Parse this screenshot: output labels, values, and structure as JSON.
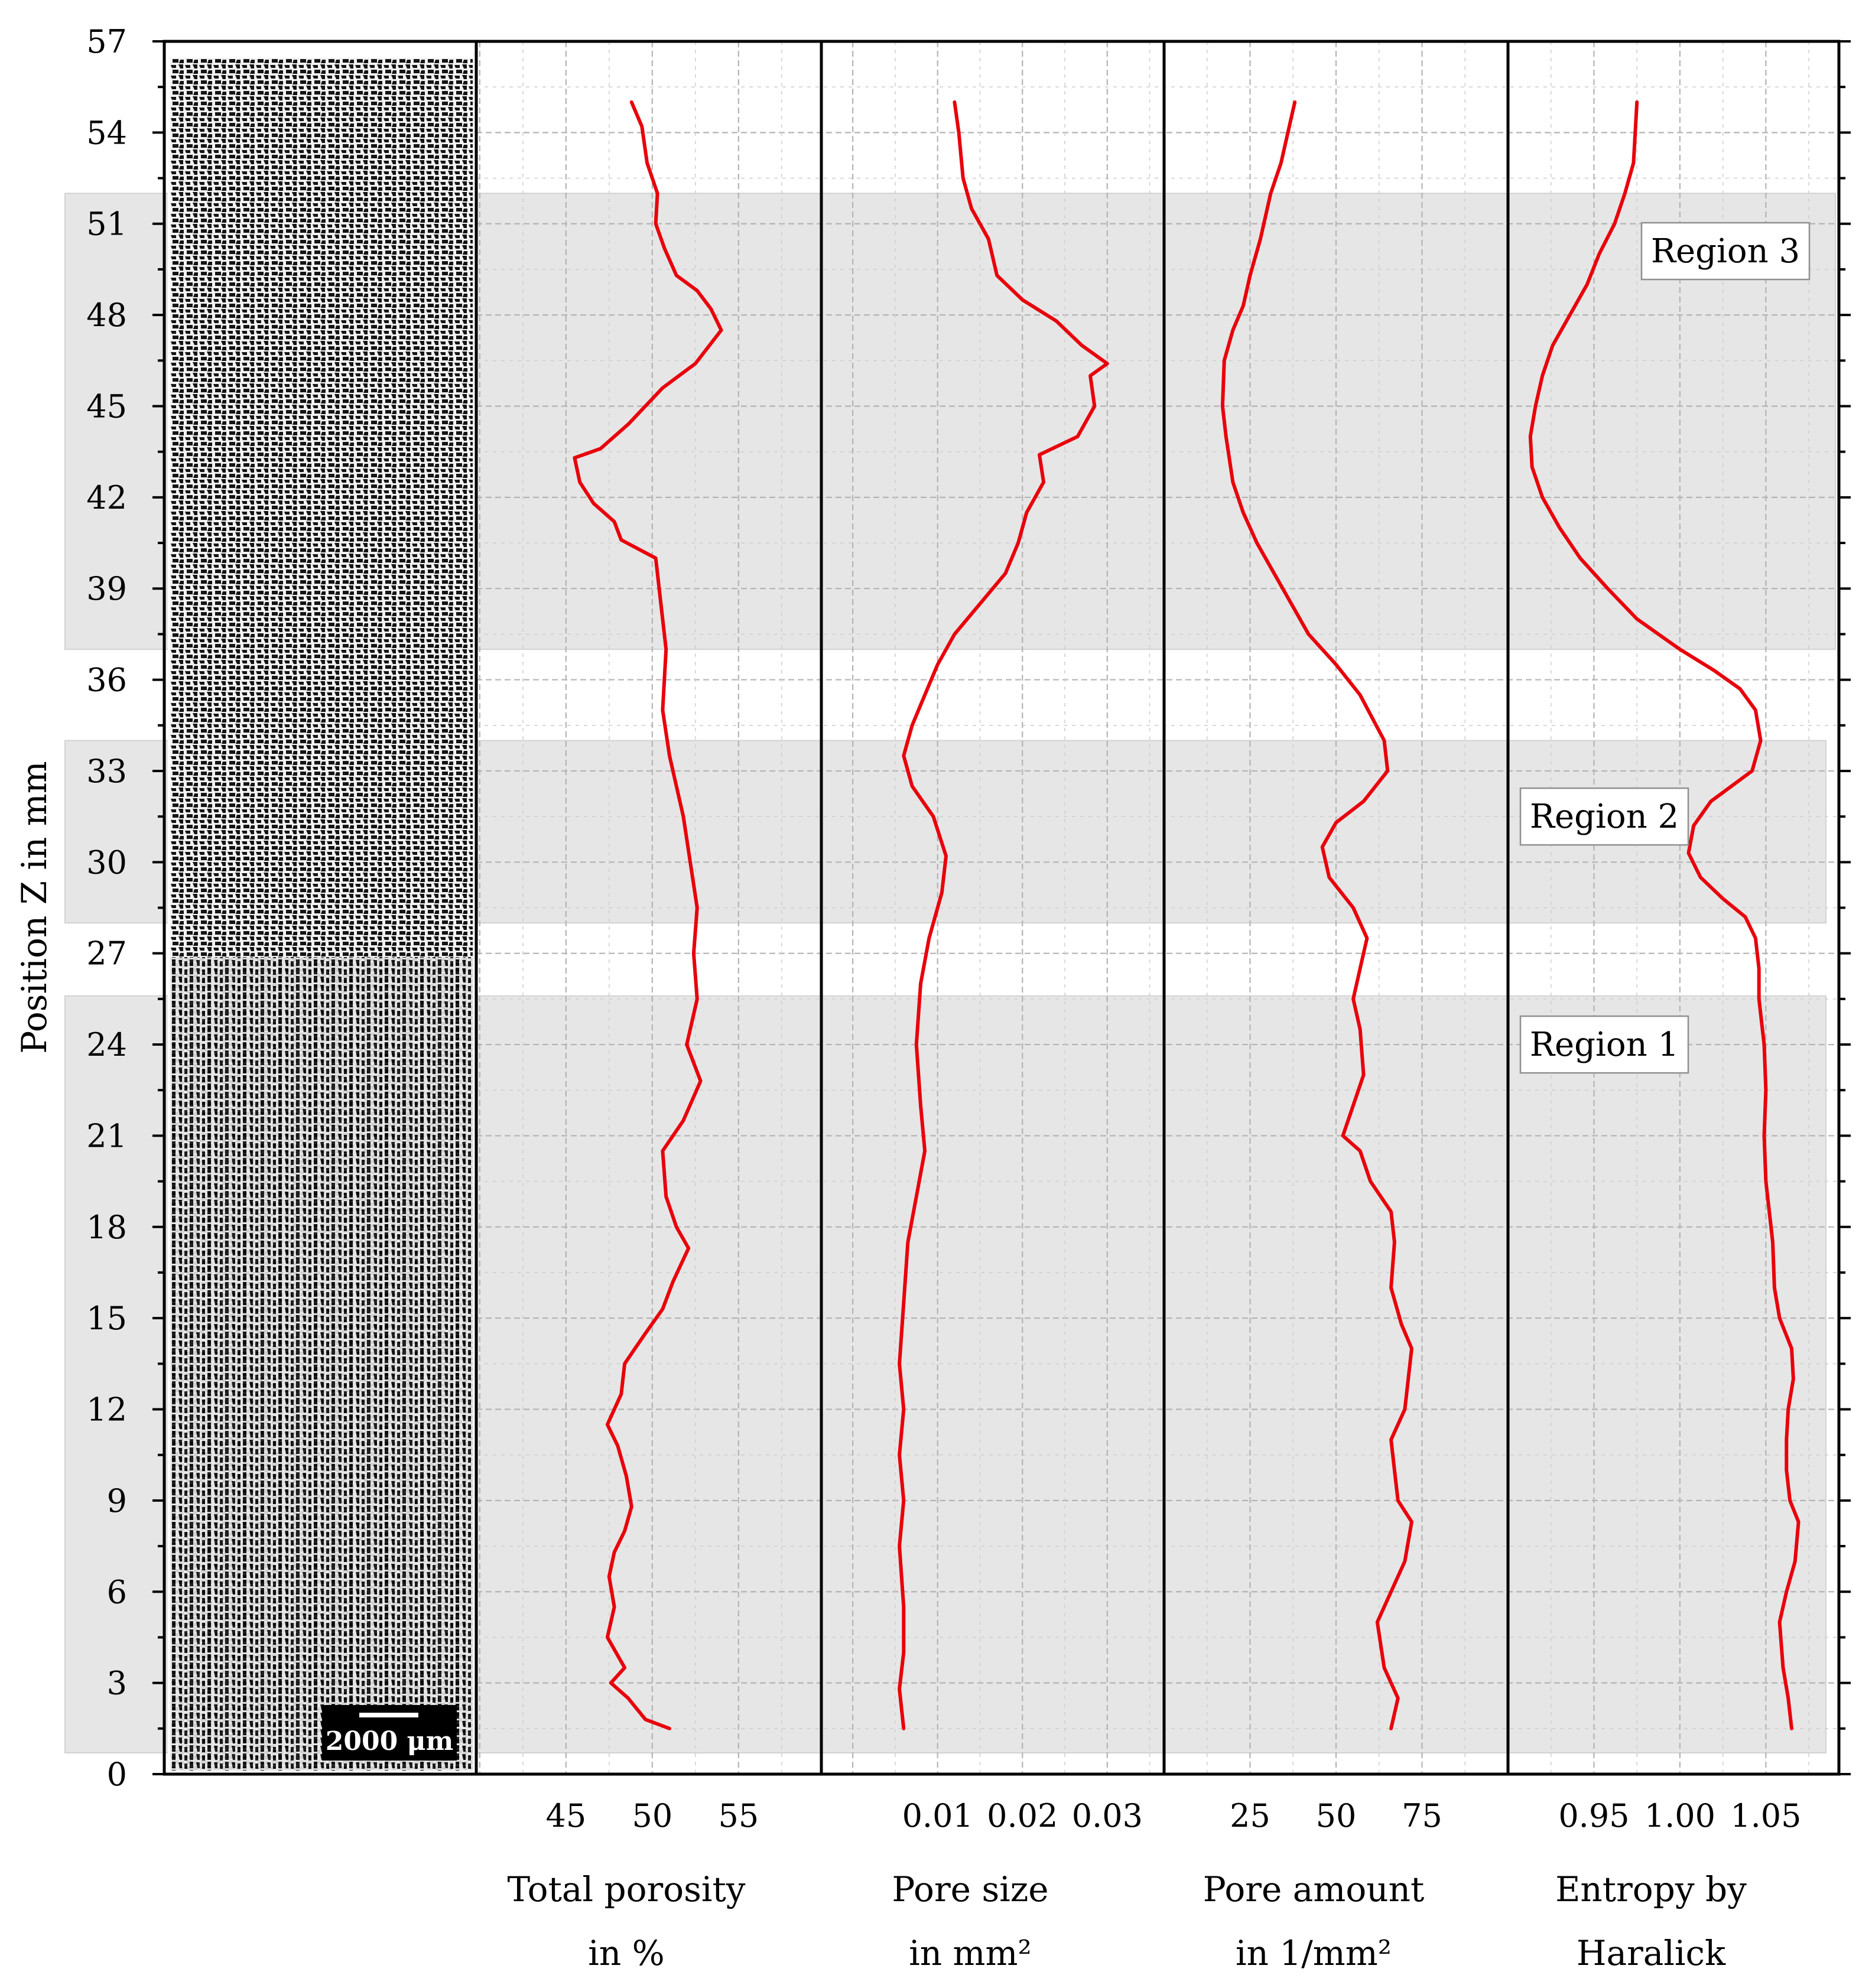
{
  "chart_data": {
    "type": "line",
    "shared_y_axis": {
      "label": "Position Z in mm",
      "range": [
        0,
        57
      ],
      "ticks": [
        0,
        3,
        6,
        9,
        12,
        15,
        18,
        21,
        24,
        27,
        30,
        33,
        36,
        39,
        42,
        45,
        48,
        51,
        54,
        57
      ],
      "tick_labels": [
        "0",
        "3",
        "6",
        "9",
        "12",
        "15",
        "18",
        "21",
        "24",
        "27",
        "30",
        "33",
        "36",
        "39",
        "42",
        "45",
        "48",
        "51",
        "54",
        "57"
      ],
      "minor_step": 1.5
    },
    "grid": true,
    "regions": [
      {
        "label": "Region 1",
        "z_range": [
          0.7,
          25.6
        ]
      },
      {
        "label": "Region 2",
        "z_range": [
          28.0,
          34.0
        ]
      },
      {
        "label": "Region 3",
        "z_range": [
          37.0,
          52.0
        ]
      }
    ],
    "image_panel": {
      "scale_bar_label": "2000 μm",
      "image_type": "microstructure"
    },
    "panels": [
      {
        "name": "porosity",
        "xlabel": [
          "Total porosity",
          "in %"
        ],
        "xlim": [
          39.8,
          59.8
        ],
        "xticks": [
          45,
          50,
          55
        ],
        "xtick_labels": [
          "45",
          "50",
          "55"
        ],
        "line_color": "#e8000b",
        "points": [
          [
            51.0,
            1.5
          ],
          [
            49.6,
            1.8
          ],
          [
            48.6,
            2.5
          ],
          [
            47.6,
            3.0
          ],
          [
            48.4,
            3.5
          ],
          [
            47.4,
            4.5
          ],
          [
            47.8,
            5.5
          ],
          [
            47.5,
            6.5
          ],
          [
            47.8,
            7.3
          ],
          [
            48.4,
            8.0
          ],
          [
            48.8,
            8.8
          ],
          [
            48.5,
            9.8
          ],
          [
            48.0,
            10.8
          ],
          [
            47.4,
            11.5
          ],
          [
            48.2,
            12.5
          ],
          [
            48.4,
            13.5
          ],
          [
            49.0,
            14.0
          ],
          [
            49.6,
            14.5
          ],
          [
            50.6,
            15.3
          ],
          [
            51.2,
            16.2
          ],
          [
            52.1,
            17.3
          ],
          [
            51.4,
            18.0
          ],
          [
            50.8,
            19.0
          ],
          [
            50.6,
            20.5
          ],
          [
            51.8,
            21.5
          ],
          [
            52.8,
            22.8
          ],
          [
            52.0,
            24.0
          ],
          [
            52.6,
            25.5
          ],
          [
            52.4,
            27.0
          ],
          [
            52.6,
            28.5
          ],
          [
            52.2,
            30.0
          ],
          [
            51.8,
            31.5
          ],
          [
            51.0,
            33.5
          ],
          [
            50.6,
            35.0
          ],
          [
            50.8,
            37.0
          ],
          [
            50.4,
            39.0
          ],
          [
            50.2,
            40.0
          ],
          [
            48.2,
            40.6
          ],
          [
            47.8,
            41.2
          ],
          [
            46.6,
            41.8
          ],
          [
            45.8,
            42.5
          ],
          [
            45.5,
            43.3
          ],
          [
            47.0,
            43.6
          ],
          [
            48.6,
            44.4
          ],
          [
            50.6,
            45.6
          ],
          [
            52.5,
            46.4
          ],
          [
            54.0,
            47.5
          ],
          [
            53.4,
            48.2
          ],
          [
            52.6,
            48.8
          ],
          [
            51.4,
            49.3
          ],
          [
            50.7,
            50.2
          ],
          [
            50.2,
            51.0
          ],
          [
            50.3,
            52.0
          ],
          [
            49.7,
            53.0
          ],
          [
            49.4,
            54.2
          ],
          [
            48.8,
            55.0
          ]
        ]
      },
      {
        "name": "pore_size",
        "xlabel": [
          "Pore size",
          "in mm²"
        ],
        "xlim": [
          -0.0037,
          0.0367
        ],
        "xticks": [
          0.01,
          0.02,
          0.03
        ],
        "xtick_labels": [
          "0.01",
          "0.02",
          "0.03"
        ],
        "line_color": "#e8000b",
        "points": [
          [
            0.006,
            1.5
          ],
          [
            0.0055,
            2.8
          ],
          [
            0.006,
            4.0
          ],
          [
            0.006,
            5.5
          ],
          [
            0.0055,
            7.5
          ],
          [
            0.006,
            9.0
          ],
          [
            0.0055,
            10.5
          ],
          [
            0.006,
            12.0
          ],
          [
            0.0055,
            13.5
          ],
          [
            0.006,
            15.5
          ],
          [
            0.0065,
            17.5
          ],
          [
            0.0075,
            19.0
          ],
          [
            0.0085,
            20.5
          ],
          [
            0.008,
            22.0
          ],
          [
            0.0075,
            24.0
          ],
          [
            0.008,
            26.0
          ],
          [
            0.009,
            27.5
          ],
          [
            0.0105,
            29.0
          ],
          [
            0.011,
            30.2
          ],
          [
            0.0095,
            31.5
          ],
          [
            0.007,
            32.5
          ],
          [
            0.006,
            33.5
          ],
          [
            0.007,
            34.5
          ],
          [
            0.0085,
            35.5
          ],
          [
            0.01,
            36.5
          ],
          [
            0.012,
            37.5
          ],
          [
            0.015,
            38.5
          ],
          [
            0.018,
            39.5
          ],
          [
            0.0195,
            40.5
          ],
          [
            0.0205,
            41.5
          ],
          [
            0.0225,
            42.5
          ],
          [
            0.022,
            43.4
          ],
          [
            0.0265,
            44.0
          ],
          [
            0.0285,
            45.0
          ],
          [
            0.028,
            46.0
          ],
          [
            0.03,
            46.4
          ],
          [
            0.027,
            47.0
          ],
          [
            0.024,
            47.8
          ],
          [
            0.02,
            48.5
          ],
          [
            0.017,
            49.3
          ],
          [
            0.016,
            50.5
          ],
          [
            0.014,
            51.5
          ],
          [
            0.013,
            52.5
          ],
          [
            0.0125,
            54.0
          ],
          [
            0.012,
            55.0
          ]
        ]
      },
      {
        "name": "pore_amount",
        "xlabel": [
          "Pore amount",
          "in 1/mm²"
        ],
        "xlim": [
          0,
          100
        ],
        "xticks": [
          25,
          50,
          75
        ],
        "xtick_labels": [
          "25",
          "50",
          "75"
        ],
        "line_color": "#e8000b",
        "points": [
          [
            66.0,
            1.5
          ],
          [
            68.0,
            2.5
          ],
          [
            64.0,
            3.5
          ],
          [
            62.0,
            5.0
          ],
          [
            66.0,
            6.0
          ],
          [
            70.0,
            7.0
          ],
          [
            72.0,
            8.3
          ],
          [
            68.0,
            9.0
          ],
          [
            67.0,
            10.0
          ],
          [
            66.0,
            11.0
          ],
          [
            70.0,
            12.0
          ],
          [
            71.0,
            13.0
          ],
          [
            72.0,
            14.0
          ],
          [
            69.0,
            14.8
          ],
          [
            66.0,
            16.0
          ],
          [
            67.0,
            17.5
          ],
          [
            66.0,
            18.5
          ],
          [
            60.0,
            19.5
          ],
          [
            57.0,
            20.5
          ],
          [
            52.0,
            21.0
          ],
          [
            55.0,
            22.0
          ],
          [
            58.0,
            23.0
          ],
          [
            57.0,
            24.5
          ],
          [
            55.0,
            25.5
          ],
          [
            57.0,
            26.5
          ],
          [
            59.0,
            27.5
          ],
          [
            55.0,
            28.5
          ],
          [
            48.0,
            29.5
          ],
          [
            46.0,
            30.5
          ],
          [
            50.0,
            31.3
          ],
          [
            58.0,
            32.0
          ],
          [
            65.0,
            33.0
          ],
          [
            64.0,
            34.0
          ],
          [
            57.0,
            35.5
          ],
          [
            50.0,
            36.5
          ],
          [
            42.0,
            37.5
          ],
          [
            37.0,
            38.5
          ],
          [
            32.0,
            39.5
          ],
          [
            27.0,
            40.5
          ],
          [
            23.0,
            41.5
          ],
          [
            20.0,
            42.5
          ],
          [
            18.0,
            44.0
          ],
          [
            17.0,
            45.0
          ],
          [
            17.5,
            46.5
          ],
          [
            20.0,
            47.5
          ],
          [
            23.0,
            48.3
          ],
          [
            25.0,
            49.3
          ],
          [
            28.0,
            50.5
          ],
          [
            31.0,
            52.0
          ],
          [
            34.0,
            53.0
          ],
          [
            36.0,
            54.0
          ],
          [
            38.0,
            55.0
          ]
        ]
      },
      {
        "name": "entropy",
        "xlabel": [
          "Entropy by",
          "Haralick"
        ],
        "xlim": [
          0.9,
          1.0925
        ],
        "xticks": [
          0.95,
          1.0,
          1.05
        ],
        "xtick_labels": [
          "0.95",
          "1.00",
          "1.05"
        ],
        "line_color": "#e8000b",
        "points": [
          [
            1.065,
            1.5
          ],
          [
            1.063,
            2.5
          ],
          [
            1.06,
            3.5
          ],
          [
            1.058,
            5.0
          ],
          [
            1.062,
            6.0
          ],
          [
            1.067,
            7.0
          ],
          [
            1.069,
            8.3
          ],
          [
            1.064,
            9.0
          ],
          [
            1.062,
            10.0
          ],
          [
            1.062,
            11.0
          ],
          [
            1.063,
            12.0
          ],
          [
            1.066,
            13.0
          ],
          [
            1.065,
            14.0
          ],
          [
            1.058,
            15.0
          ],
          [
            1.055,
            16.0
          ],
          [
            1.054,
            17.5
          ],
          [
            1.05,
            19.5
          ],
          [
            1.049,
            21.0
          ],
          [
            1.05,
            22.5
          ],
          [
            1.049,
            24.0
          ],
          [
            1.046,
            25.5
          ],
          [
            1.046,
            26.5
          ],
          [
            1.044,
            27.5
          ],
          [
            1.038,
            28.2
          ],
          [
            1.025,
            28.8
          ],
          [
            1.012,
            29.5
          ],
          [
            1.005,
            30.3
          ],
          [
            1.008,
            31.2
          ],
          [
            1.018,
            32.0
          ],
          [
            1.03,
            32.5
          ],
          [
            1.042,
            33.0
          ],
          [
            1.047,
            34.0
          ],
          [
            1.044,
            35.0
          ],
          [
            1.035,
            35.7
          ],
          [
            1.02,
            36.3
          ],
          [
            1.0,
            37.0
          ],
          [
            0.975,
            38.0
          ],
          [
            0.958,
            39.0
          ],
          [
            0.942,
            40.0
          ],
          [
            0.93,
            41.0
          ],
          [
            0.92,
            42.0
          ],
          [
            0.914,
            43.0
          ],
          [
            0.913,
            44.0
          ],
          [
            0.916,
            45.0
          ],
          [
            0.92,
            46.0
          ],
          [
            0.926,
            47.0
          ],
          [
            0.936,
            48.0
          ],
          [
            0.946,
            49.0
          ],
          [
            0.953,
            50.0
          ],
          [
            0.962,
            51.0
          ],
          [
            0.968,
            52.0
          ],
          [
            0.973,
            53.0
          ],
          [
            0.974,
            54.0
          ],
          [
            0.975,
            55.0
          ]
        ]
      }
    ]
  }
}
